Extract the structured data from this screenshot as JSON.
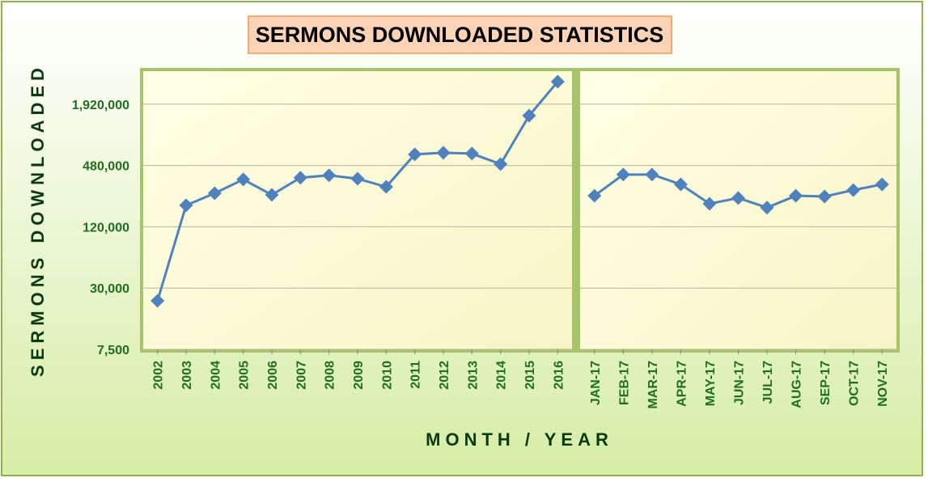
{
  "chart_data": [
    {
      "type": "line",
      "title": "SERMONS DOWNLOADED STATISTICS",
      "xlabel": "MONTH / YEAR",
      "ylabel": "SERMONS DOWNLOADED",
      "categories": [
        "2002",
        "2003",
        "2004",
        "2005",
        "2006",
        "2007",
        "2008",
        "2009",
        "2010",
        "2011",
        "2012",
        "2013",
        "2014",
        "2015",
        "2016"
      ],
      "values": [
        22500,
        195000,
        256000,
        350000,
        247000,
        364000,
        384000,
        356000,
        296000,
        617000,
        640000,
        628000,
        495000,
        1481000,
        3195000
      ],
      "color": "#4f81bd",
      "log_scale": true,
      "grid": true,
      "ylim": [
        7500,
        4050000
      ],
      "yticks": [
        {
          "value": 7500,
          "label": "7,500"
        },
        {
          "value": 30000,
          "label": "30,000"
        },
        {
          "value": 120000,
          "label": "120,000"
        },
        {
          "value": 480000,
          "label": "480,000"
        },
        {
          "value": 1920000,
          "label": "1,920,000"
        }
      ]
    },
    {
      "type": "line",
      "categories": [
        "JAN-17",
        "FEB-17",
        "MAR-17",
        "APR-17",
        "MAY-17",
        "JUN-17",
        "JUL-17",
        "AUG-17",
        "SEP-17",
        "OCT-17",
        "NOV-17"
      ],
      "values": [
        242000,
        391000,
        391000,
        313000,
        202000,
        230000,
        185000,
        242000,
        238000,
        275000,
        313000
      ],
      "color": "#4f81bd",
      "log_scale": true,
      "grid": true,
      "ylim": [
        7500,
        4050000
      ],
      "yticks": [
        7500,
        30000,
        120000,
        480000,
        1920000
      ]
    }
  ]
}
